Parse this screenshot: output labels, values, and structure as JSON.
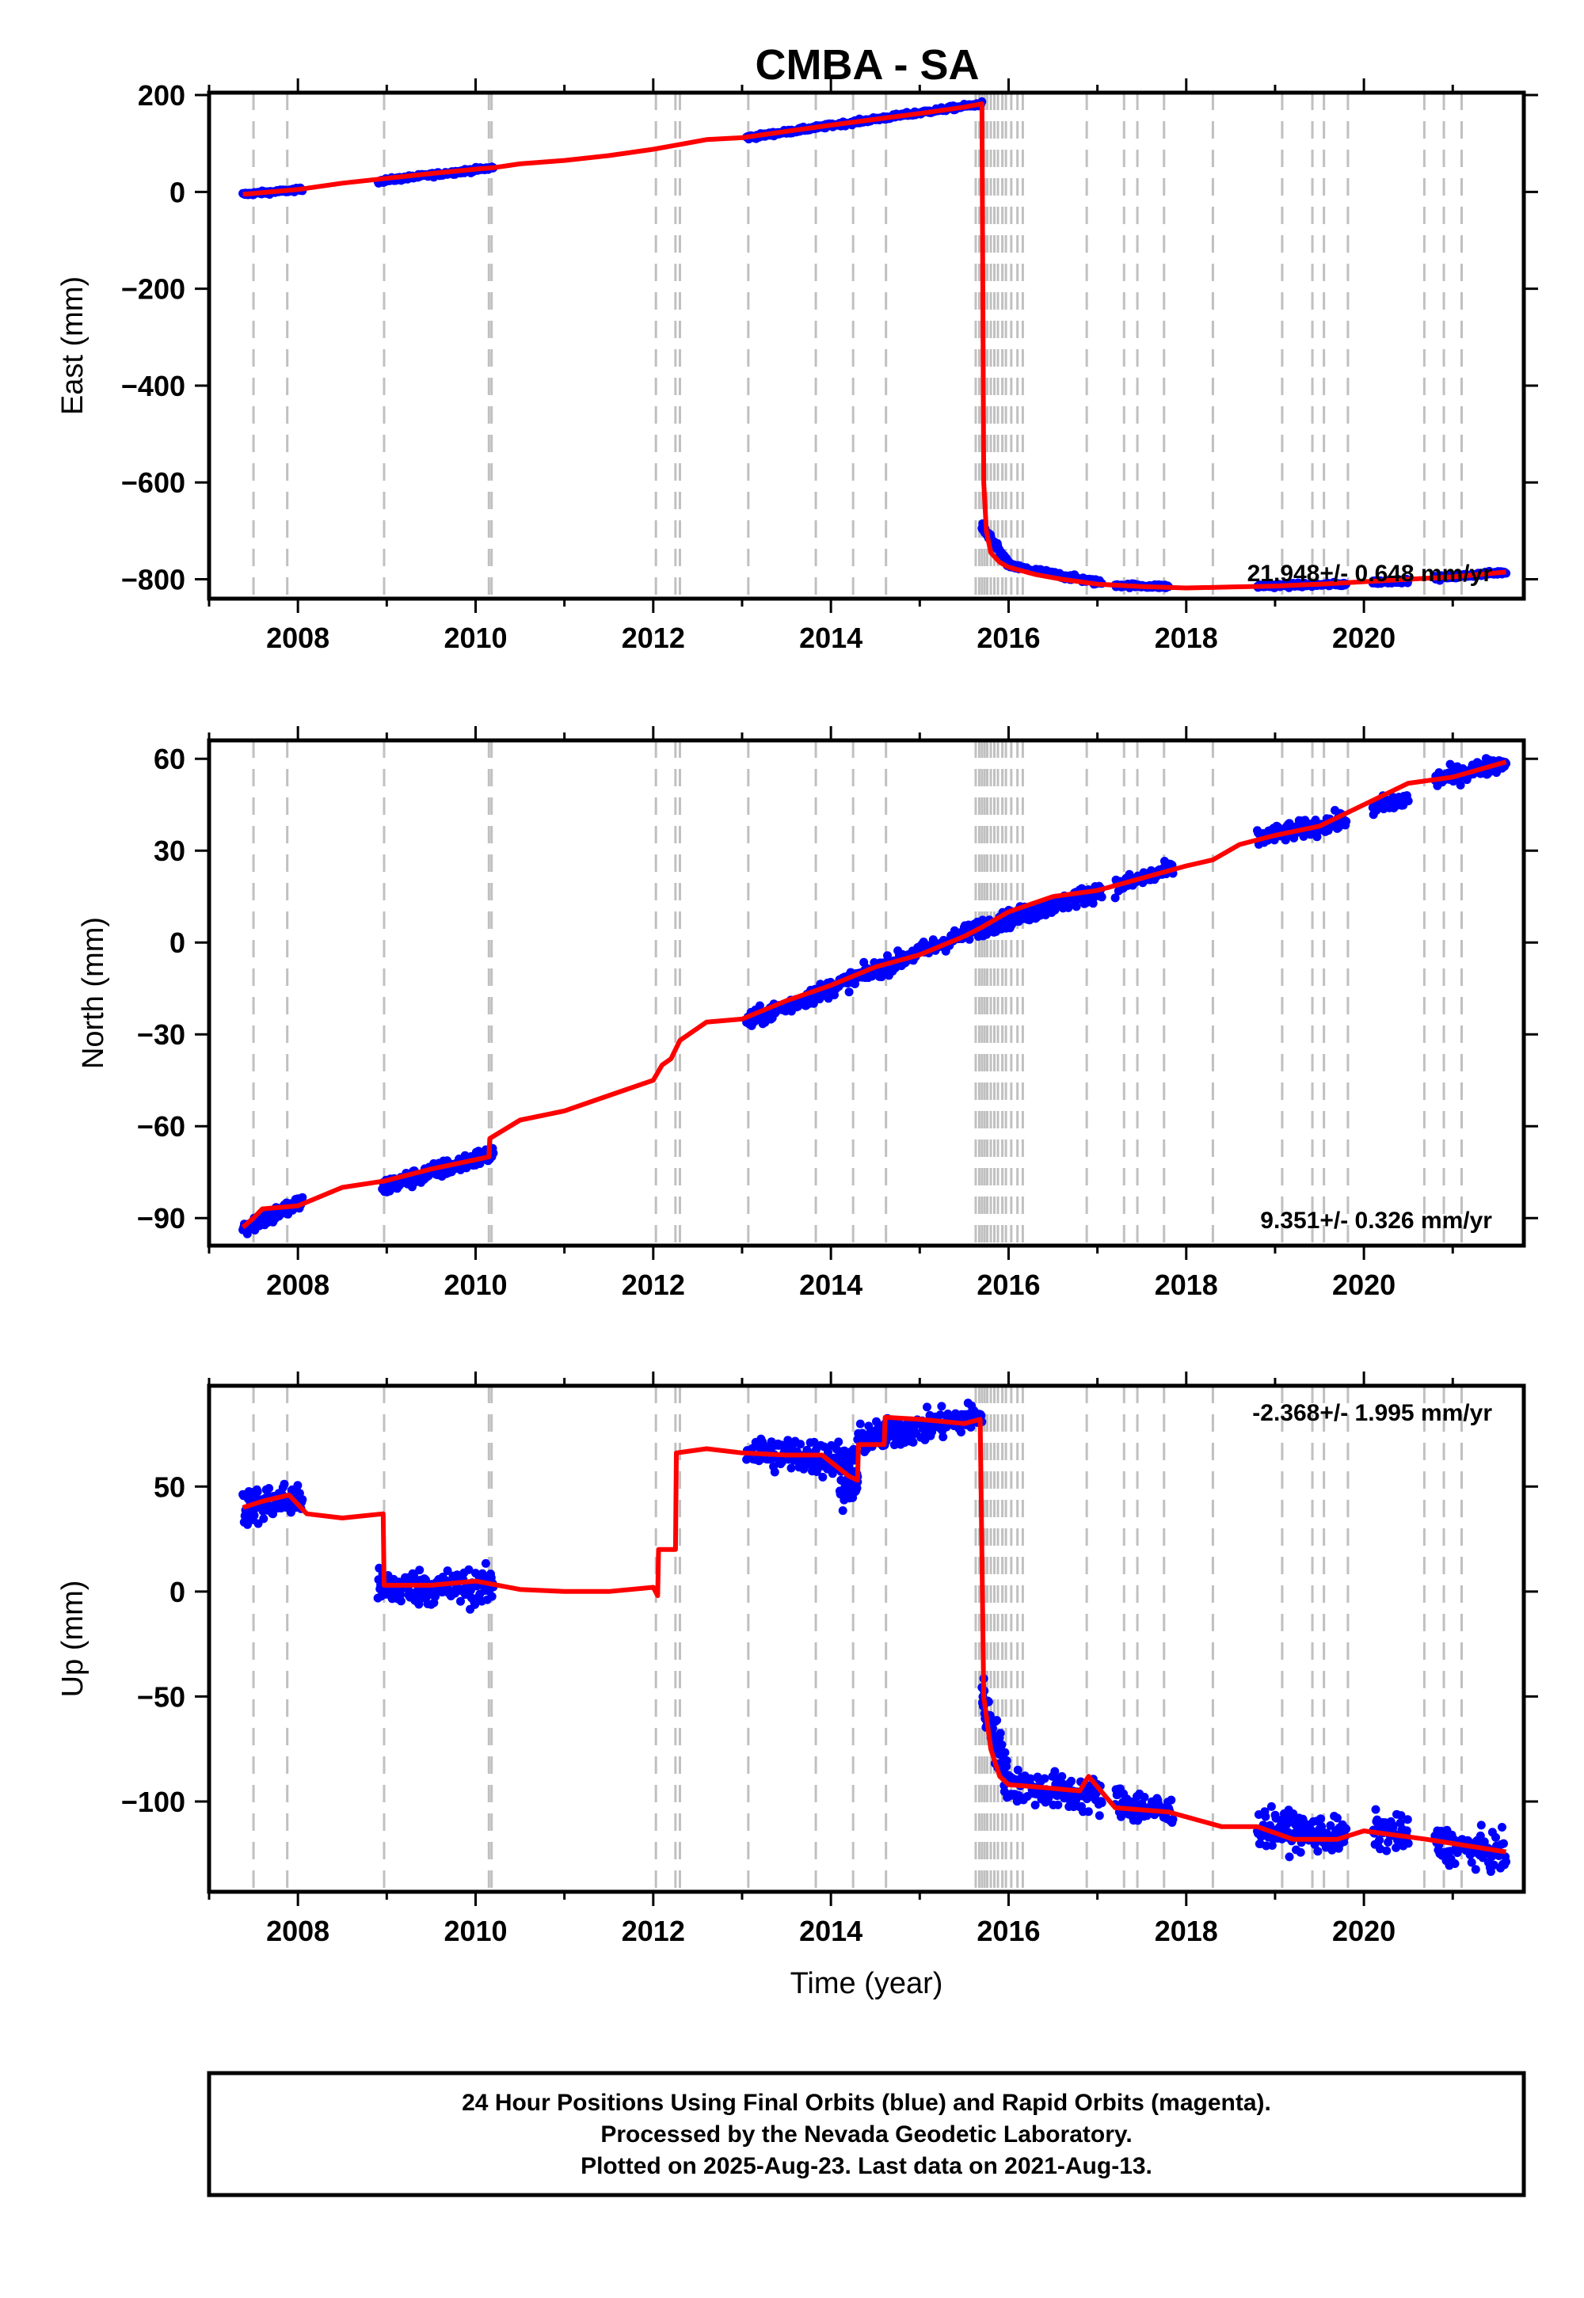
{
  "title": "CMBA - SA",
  "colors": {
    "final_orbits": "#0000ff",
    "model": "#ff0000",
    "steps": "#c0c0c0",
    "frame": "#000000"
  },
  "chart_data": [
    {
      "type": "scatter",
      "component": "east",
      "ylabel": "East (mm)",
      "xlabel": "",
      "xlim": [
        2007.0,
        2021.8
      ],
      "ylim": [
        -840,
        205
      ],
      "xticks": [
        2008,
        2010,
        2012,
        2014,
        2016,
        2018,
        2020
      ],
      "xtick_labels": [
        "2008",
        "2010",
        "2012",
        "2014",
        "2016",
        "2018",
        "2020"
      ],
      "yticks": [
        200,
        0,
        -200,
        -400,
        -600,
        -800
      ],
      "ytick_labels": [
        "200",
        "0",
        "−200",
        "−400",
        "−600",
        "−800"
      ],
      "rate": "21.948+/- 0.648 mm/yr",
      "rate_position": "bottom-right",
      "model_line": {
        "x": [
          2007.38,
          2007.5,
          2008.0,
          2008.5,
          2009.0,
          2009.5,
          2010.0,
          2010.2,
          2010.5,
          2011.0,
          2011.5,
          2012.0,
          2012.3,
          2012.6,
          2013.0,
          2013.5,
          2014.0,
          2014.5,
          2015.0,
          2015.5,
          2015.7,
          2015.72,
          2015.75,
          2015.8,
          2015.9,
          2016.0,
          2016.3,
          2016.6,
          2017.0,
          2017.5,
          2018.0,
          2018.5,
          2019.0,
          2019.5,
          2020.0,
          2020.5,
          2021.0,
          2021.6
        ],
        "y": [
          -5,
          -3,
          5,
          18,
          28,
          38,
          47,
          50,
          58,
          65,
          75,
          88,
          98,
          108,
          112,
          125,
          138,
          150,
          162,
          175,
          182,
          -600,
          -700,
          -745,
          -765,
          -775,
          -790,
          -800,
          -810,
          -815,
          -818,
          -816,
          -814,
          -810,
          -805,
          -800,
          -795,
          -785
        ]
      },
      "observed_segments": [
        {
          "x0": 2007.38,
          "x1": 2008.05,
          "y0": -5,
          "y1": 5,
          "n": 90,
          "noise": 2.5
        },
        {
          "x0": 2008.9,
          "x1": 2010.2,
          "y0": 22,
          "y1": 50,
          "n": 160,
          "noise": 3
        },
        {
          "x0": 2013.05,
          "x1": 2015.7,
          "y0": 112,
          "y1": 182,
          "n": 320,
          "noise": 3
        },
        {
          "x0": 2015.7,
          "x1": 2016.0,
          "y0": -690,
          "y1": -770,
          "n": 70,
          "noise": 6
        },
        {
          "x0": 2016.0,
          "x1": 2017.05,
          "y0": -772,
          "y1": -808,
          "n": 120,
          "noise": 4
        },
        {
          "x0": 2017.2,
          "x1": 2017.8,
          "y0": -812,
          "y1": -815,
          "n": 60,
          "noise": 3
        },
        {
          "x0": 2018.8,
          "x1": 2019.8,
          "y0": -814,
          "y1": -810,
          "n": 110,
          "noise": 3
        },
        {
          "x0": 2020.1,
          "x1": 2020.5,
          "y0": -806,
          "y1": -802,
          "n": 50,
          "noise": 3
        },
        {
          "x0": 2020.8,
          "x1": 2021.6,
          "y0": -798,
          "y1": -785,
          "n": 90,
          "noise": 3
        }
      ]
    },
    {
      "type": "scatter",
      "component": "north",
      "ylabel": "North (mm)",
      "xlabel": "",
      "xlim": [
        2007.0,
        2021.8
      ],
      "ylim": [
        -99,
        66
      ],
      "xticks": [
        2008,
        2010,
        2012,
        2014,
        2016,
        2018,
        2020
      ],
      "xtick_labels": [
        "2008",
        "2010",
        "2012",
        "2014",
        "2016",
        "2018",
        "2020"
      ],
      "yticks": [
        60,
        30,
        0,
        -30,
        -60,
        -90
      ],
      "ytick_labels": [
        "60",
        "30",
        "0",
        "−30",
        "−60",
        "−90"
      ],
      "rate": "9.351+/- 0.326 mm/yr",
      "rate_position": "bottom-right",
      "model_line": {
        "x": [
          2007.38,
          2007.5,
          2007.6,
          2008.0,
          2008.5,
          2008.95,
          2008.96,
          2009.5,
          2010.15,
          2010.16,
          2010.5,
          2011.0,
          2011.5,
          2012.0,
          2012.1,
          2012.2,
          2012.3,
          2012.6,
          2013.0,
          2013.5,
          2014.0,
          2014.5,
          2015.0,
          2015.5,
          2015.7,
          2016.0,
          2016.5,
          2017.0,
          2017.5,
          2018.0,
          2018.3,
          2018.6,
          2019.0,
          2019.5,
          2020.0,
          2020.5,
          2021.0,
          2021.6
        ],
        "y": [
          -93,
          -90,
          -87,
          -86,
          -80,
          -78,
          -78,
          -74,
          -70,
          -64,
          -58,
          -55,
          -50,
          -45,
          -40,
          -38,
          -32,
          -26,
          -25,
          -19,
          -14,
          -8,
          -4,
          2,
          5,
          10,
          15,
          17,
          21,
          25,
          27,
          32,
          35,
          38,
          45,
          52,
          54,
          59
        ]
      },
      "observed_segments": [
        {
          "x0": 2007.38,
          "x1": 2008.05,
          "y0": -93,
          "y1": -85,
          "n": 80,
          "noise": 2
        },
        {
          "x0": 2008.95,
          "x1": 2010.2,
          "y0": -80,
          "y1": -69,
          "n": 150,
          "noise": 2
        },
        {
          "x0": 2013.05,
          "x1": 2015.7,
          "y0": -26,
          "y1": 5,
          "n": 320,
          "noise": 2
        },
        {
          "x0": 2015.7,
          "x1": 2017.05,
          "y0": 5,
          "y1": 17,
          "n": 180,
          "noise": 2
        },
        {
          "x0": 2017.2,
          "x1": 2017.85,
          "y0": 18,
          "y1": 24,
          "n": 70,
          "noise": 2
        },
        {
          "x0": 2018.8,
          "x1": 2019.8,
          "y0": 34,
          "y1": 40,
          "n": 120,
          "noise": 2
        },
        {
          "x0": 2020.1,
          "x1": 2020.5,
          "y0": 44,
          "y1": 47,
          "n": 50,
          "noise": 2
        },
        {
          "x0": 2020.8,
          "x1": 2021.6,
          "y0": 53,
          "y1": 59,
          "n": 90,
          "noise": 2
        }
      ]
    },
    {
      "type": "scatter",
      "component": "up",
      "ylabel": "Up (mm)",
      "xlabel": "Time (year)",
      "xlim": [
        2007.0,
        2021.8
      ],
      "ylim": [
        -143,
        98
      ],
      "xticks": [
        2008,
        2010,
        2012,
        2014,
        2016,
        2018,
        2020
      ],
      "xtick_labels": [
        "2008",
        "2010",
        "2012",
        "2014",
        "2016",
        "2018",
        "2020"
      ],
      "yticks": [
        50,
        0,
        -50,
        -100
      ],
      "ytick_labels": [
        "50",
        "0",
        "−50",
        "−100"
      ],
      "rate": "-2.368+/- 1.995 mm/yr",
      "rate_position": "top-right",
      "model_line": {
        "x": [
          2007.38,
          2007.6,
          2007.9,
          2008.1,
          2008.5,
          2008.96,
          2008.97,
          2009.5,
          2010.0,
          2010.5,
          2011.0,
          2011.5,
          2012.0,
          2012.05,
          2012.06,
          2012.25,
          2012.26,
          2012.6,
          2013.0,
          2013.5,
          2013.9,
          2014.2,
          2014.3,
          2014.31,
          2014.6,
          2014.61,
          2015.0,
          2015.5,
          2015.68,
          2015.72,
          2015.8,
          2015.9,
          2016.0,
          2016.3,
          2016.8,
          2016.9,
          2017.2,
          2017.8,
          2018.4,
          2018.8,
          2019.2,
          2019.7,
          2020.0,
          2020.7,
          2021.0,
          2021.6
        ],
        "y": [
          40,
          43,
          46,
          37,
          35,
          37,
          3,
          3,
          5,
          1,
          0,
          0,
          2,
          -2,
          20,
          20,
          66,
          68,
          66,
          65,
          65,
          55,
          53,
          70,
          70,
          83,
          82,
          80,
          82,
          -50,
          -75,
          -88,
          -92,
          -93,
          -95,
          -88,
          -103,
          -105,
          -112,
          -112,
          -118,
          -118,
          -114,
          -118,
          -120,
          -124
        ]
      },
      "observed_segments": [
        {
          "x0": 2007.38,
          "x1": 2008.05,
          "y0": 40,
          "y1": 45,
          "n": 90,
          "noise": 6
        },
        {
          "x0": 2008.9,
          "x1": 2010.2,
          "y0": 2,
          "y1": 2,
          "n": 170,
          "noise": 6
        },
        {
          "x0": 2013.05,
          "x1": 2014.3,
          "y0": 67,
          "y1": 62,
          "n": 170,
          "noise": 6
        },
        {
          "x0": 2014.1,
          "x1": 2014.3,
          "y0": 45,
          "y1": 50,
          "n": 30,
          "noise": 6
        },
        {
          "x0": 2014.3,
          "x1": 2015.7,
          "y0": 72,
          "y1": 84,
          "n": 180,
          "noise": 5
        },
        {
          "x0": 2015.7,
          "x1": 2016.0,
          "y0": -50,
          "y1": -90,
          "n": 60,
          "noise": 8
        },
        {
          "x0": 2016.0,
          "x1": 2017.05,
          "y0": -92,
          "y1": -98,
          "n": 120,
          "noise": 6
        },
        {
          "x0": 2017.2,
          "x1": 2017.85,
          "y0": -100,
          "y1": -106,
          "n": 70,
          "noise": 6
        },
        {
          "x0": 2018.8,
          "x1": 2019.8,
          "y0": -112,
          "y1": -117,
          "n": 120,
          "noise": 6
        },
        {
          "x0": 2020.1,
          "x1": 2020.5,
          "y0": -114,
          "y1": -116,
          "n": 50,
          "noise": 6
        },
        {
          "x0": 2020.8,
          "x1": 2021.6,
          "y0": -120,
          "y1": -125,
          "n": 90,
          "noise": 6
        }
      ]
    }
  ],
  "step_dates": [
    2007.5,
    2007.88,
    2008.97,
    2010.15,
    2010.18,
    2012.03,
    2012.25,
    2012.3,
    2013.07,
    2013.83,
    2014.25,
    2014.62,
    2015.63,
    2015.67,
    2015.7,
    2015.73,
    2015.76,
    2015.8,
    2015.84,
    2015.88,
    2015.93,
    2015.97,
    2016.03,
    2016.1,
    2016.16,
    2016.88,
    2017.3,
    2017.45,
    2017.75,
    2018.3,
    2019.08,
    2019.42,
    2019.55,
    2019.82,
    2020.68,
    2020.9,
    2021.1
  ],
  "footer": {
    "line1": "24 Hour Positions Using Final Orbits (blue) and Rapid Orbits (magenta).",
    "line2": "Processed by the Nevada Geodetic Laboratory.",
    "line3": "Plotted on 2025-Aug-23. Last data on 2021-Aug-13."
  }
}
